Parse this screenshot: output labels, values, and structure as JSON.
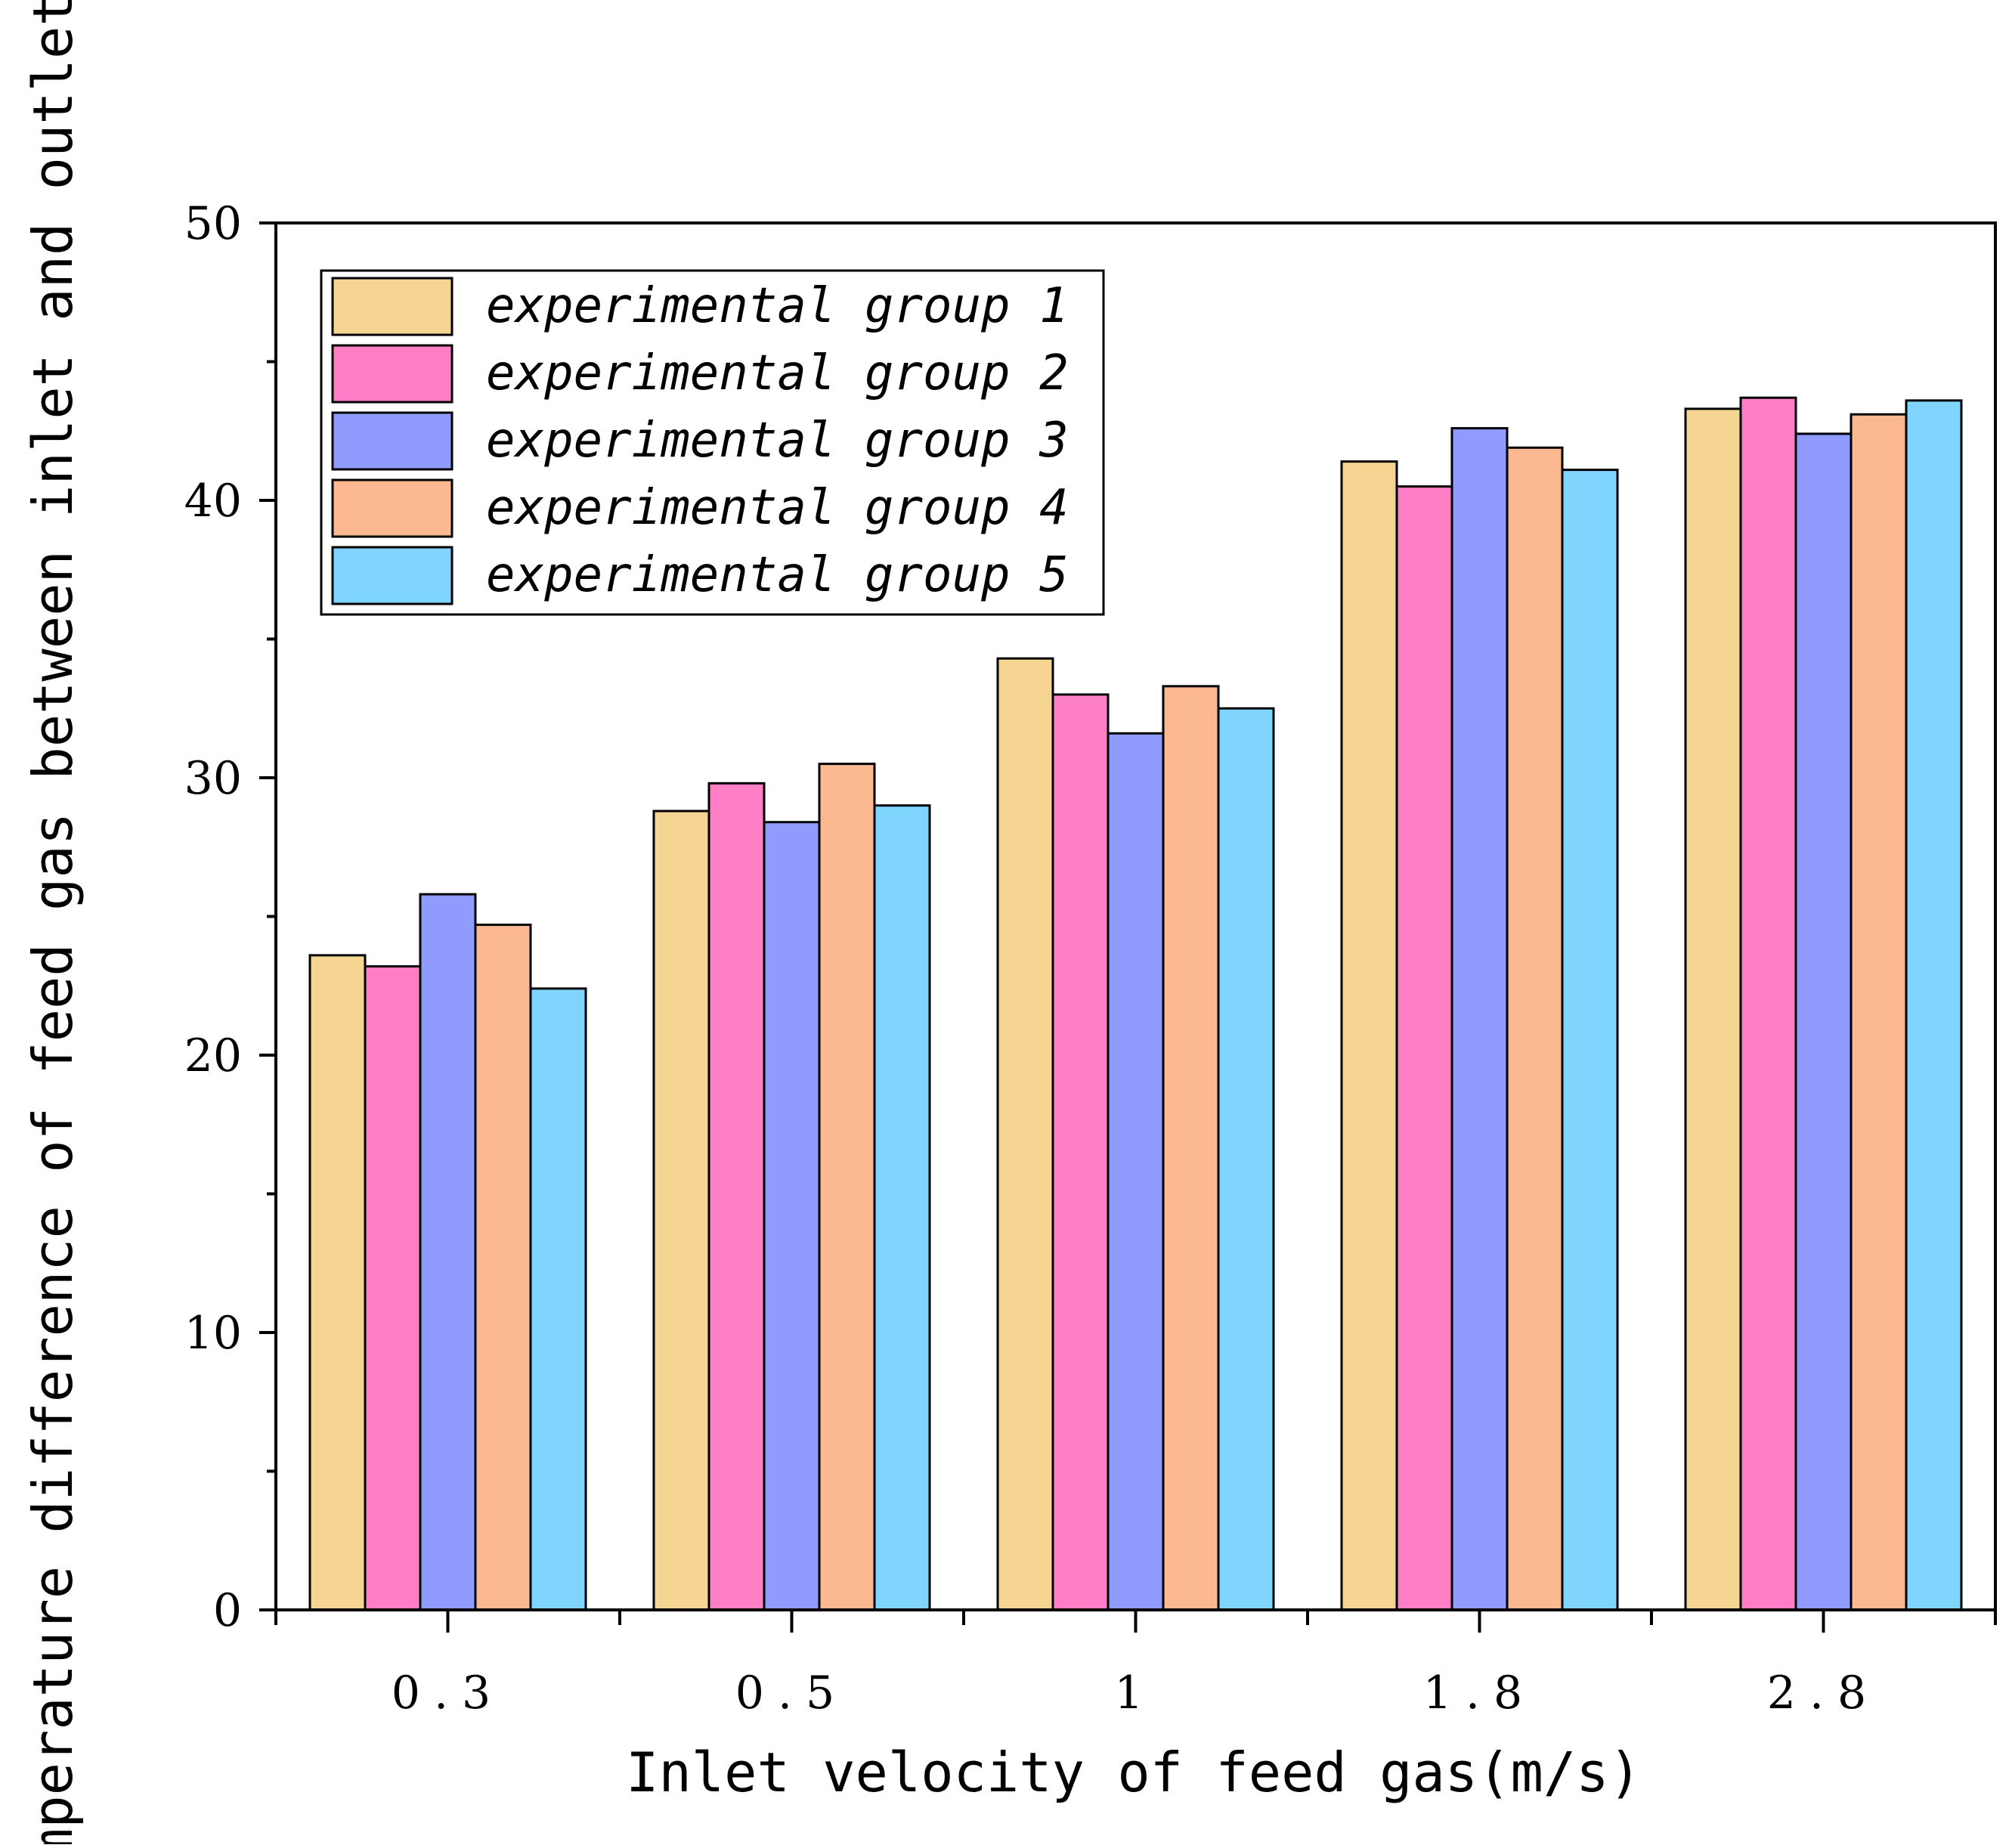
{
  "chart_data": {
    "type": "bar",
    "categories": [
      "0.3",
      "0.5",
      "1",
      "1.8",
      "2.8"
    ],
    "xlabel": "Inlet velocity of feed gas(m/s)",
    "ylabel": "Temperature difference of feed gas between inlet and outlet(K)",
    "ylim": [
      0,
      50
    ],
    "yticks": [
      "0",
      "10",
      "20",
      "30",
      "40",
      "50"
    ],
    "grid": false,
    "legend_position": "top-left",
    "series": [
      {
        "name": "experimental group 1",
        "color": "#F6D592",
        "values": [
          23.6,
          28.8,
          34.3,
          41.4,
          43.3
        ]
      },
      {
        "name": "experimental group 2",
        "color": "#FF7FC7",
        "values": [
          23.2,
          29.8,
          33.0,
          40.5,
          43.7
        ]
      },
      {
        "name": "experimental group 3",
        "color": "#8F9BFD",
        "values": [
          25.8,
          28.4,
          31.6,
          42.6,
          42.4
        ]
      },
      {
        "name": "experimental group 4",
        "color": "#FBB891",
        "values": [
          24.7,
          30.5,
          33.3,
          41.9,
          43.1
        ]
      },
      {
        "name": "experimental group 5",
        "color": "#80D5FE",
        "values": [
          22.4,
          29.0,
          32.5,
          41.1,
          43.6
        ]
      }
    ]
  }
}
